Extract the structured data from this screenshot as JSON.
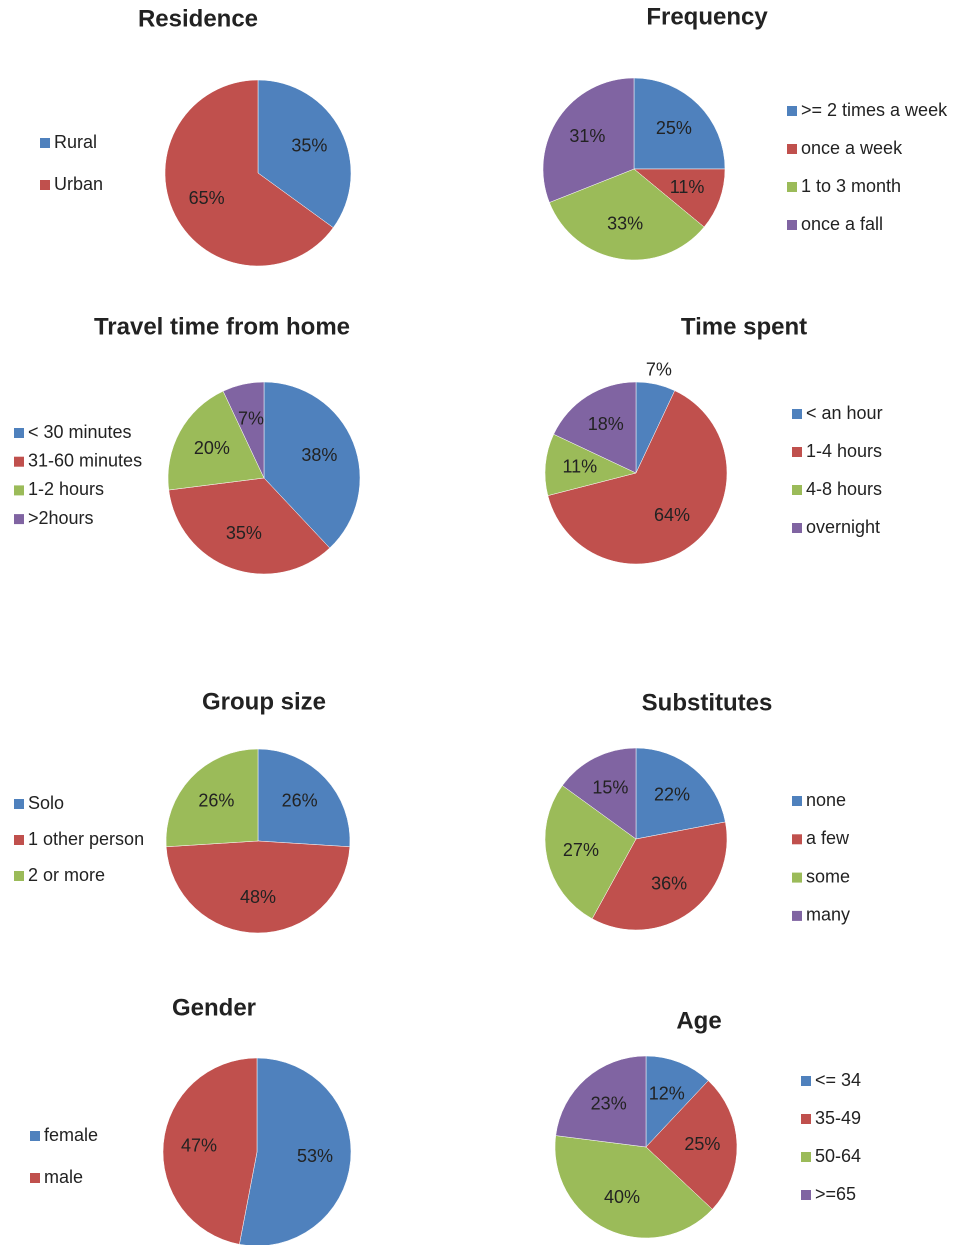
{
  "chart_data": [
    {
      "type": "pie",
      "title": "Residence",
      "categories": [
        "Rural",
        "Urban"
      ],
      "values": [
        35,
        65
      ],
      "value_labels": [
        "35%",
        "65%"
      ],
      "colors": [
        "#4f81bd",
        "#c0504d"
      ]
    },
    {
      "type": "pie",
      "title": "Frequency",
      "categories": [
        ">= 2 times a week",
        "once a week",
        "1 to 3 month",
        "once a fall"
      ],
      "values": [
        25,
        11,
        33,
        31
      ],
      "value_labels": [
        "25%",
        "11%",
        "33%",
        "31%"
      ],
      "colors": [
        "#4f81bd",
        "#c0504d",
        "#9bbb59",
        "#8064a2"
      ]
    },
    {
      "type": "pie",
      "title": "Travel time from home",
      "categories": [
        "< 30 minutes",
        "31-60 minutes",
        "1-2 hours",
        ">2hours"
      ],
      "values": [
        38,
        35,
        20,
        7
      ],
      "value_labels": [
        "38%",
        "35%",
        "20%",
        "7%"
      ],
      "colors": [
        "#4f81bd",
        "#c0504d",
        "#9bbb59",
        "#8064a2"
      ]
    },
    {
      "type": "pie",
      "title": "Time spent",
      "categories": [
        "< an hour",
        "1-4 hours",
        "4-8 hours",
        "overnight"
      ],
      "values": [
        7,
        64,
        11,
        18
      ],
      "value_labels": [
        "7%",
        "64%",
        "11%",
        "18%"
      ],
      "colors": [
        "#4f81bd",
        "#c0504d",
        "#9bbb59",
        "#8064a2"
      ]
    },
    {
      "type": "pie",
      "title": "Group size",
      "categories": [
        "Solo",
        "1 other person",
        "2 or more"
      ],
      "values": [
        26,
        48,
        26
      ],
      "value_labels": [
        "26%",
        "48%",
        "26%"
      ],
      "colors": [
        "#4f81bd",
        "#c0504d",
        "#9bbb59"
      ]
    },
    {
      "type": "pie",
      "title": "Substitutes",
      "categories": [
        "none",
        "a few",
        "some",
        "many"
      ],
      "values": [
        22,
        36,
        27,
        15
      ],
      "value_labels": [
        "22%",
        "36%",
        "27%",
        "15%"
      ],
      "colors": [
        "#4f81bd",
        "#c0504d",
        "#9bbb59",
        "#8064a2"
      ]
    },
    {
      "type": "pie",
      "title": "Gender",
      "categories": [
        "female",
        "male"
      ],
      "values": [
        53,
        47
      ],
      "value_labels": [
        "53%",
        "47%"
      ],
      "colors": [
        "#4f81bd",
        "#c0504d"
      ]
    },
    {
      "type": "pie",
      "title": "Age",
      "categories": [
        "<= 34",
        "35-49",
        "50-64",
        ">=65"
      ],
      "values": [
        12,
        25,
        40,
        23
      ],
      "value_labels": [
        "12%",
        "25%",
        "40%",
        "23%"
      ],
      "colors": [
        "#4f81bd",
        "#c0504d",
        "#9bbb59",
        "#8064a2"
      ]
    }
  ]
}
